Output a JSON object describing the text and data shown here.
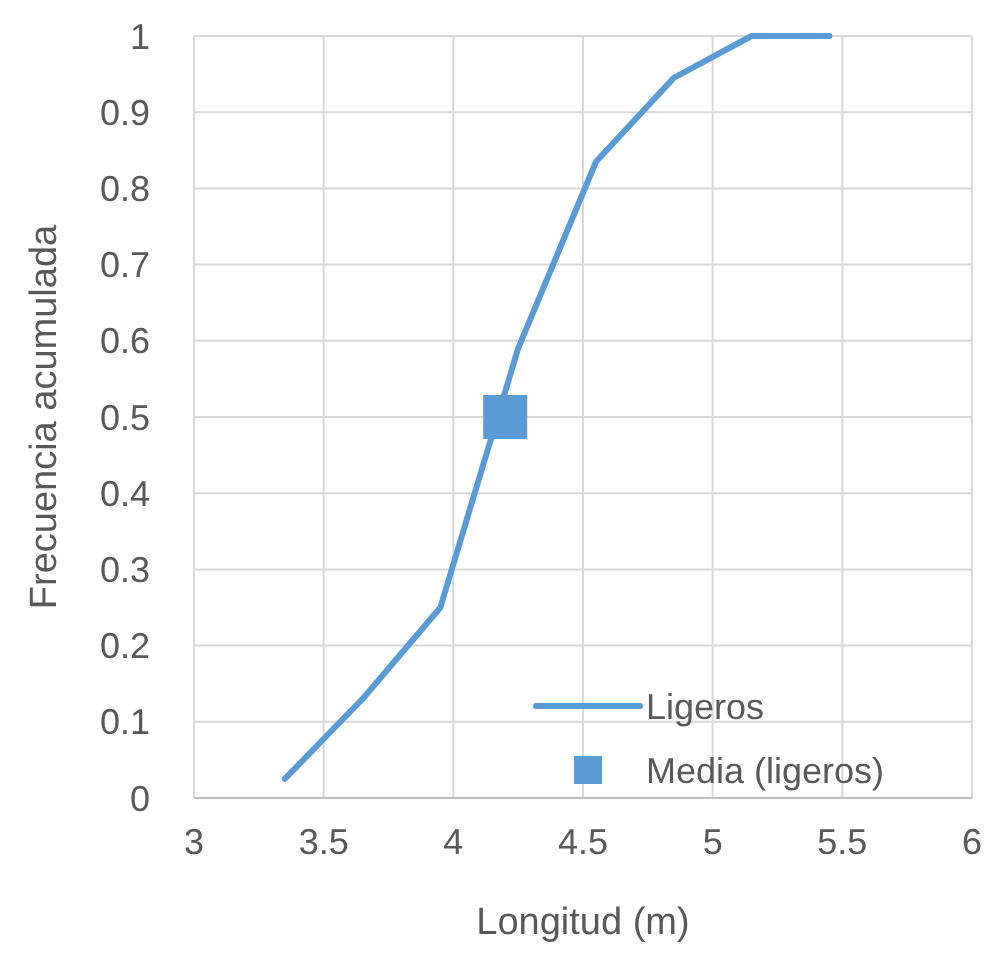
{
  "chart_data": {
    "type": "line",
    "xlabel": "Longitud (m)",
    "ylabel": "Frecuencia acumulada",
    "xlim": [
      3,
      6
    ],
    "ylim": [
      0,
      1
    ],
    "xticks": [
      3,
      3.5,
      4,
      4.5,
      5,
      5.5,
      6
    ],
    "yticks": [
      0,
      0.1,
      0.2,
      0.3,
      0.4,
      0.5,
      0.6,
      0.7,
      0.8,
      0.9,
      1
    ],
    "grid": true,
    "legend": "bottom right",
    "series": [
      {
        "name": "Ligeros",
        "color": "#5b9bd5",
        "x": [
          3.35,
          3.65,
          3.95,
          4.25,
          4.55,
          4.85,
          5.15,
          5.45
        ],
        "values": [
          0.025,
          0.13,
          0.25,
          0.59,
          0.835,
          0.945,
          1,
          1
        ],
        "marker": "none"
      },
      {
        "name": "Media (ligeros)",
        "type": "scatter",
        "color": "#5b9bd5",
        "x": [
          4.2
        ],
        "values": [
          0.5
        ],
        "marker": "square"
      }
    ]
  }
}
